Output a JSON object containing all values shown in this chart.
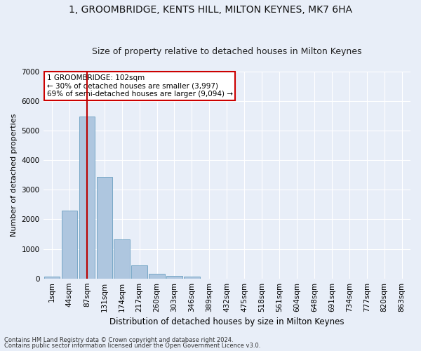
{
  "title": "1, GROOMBRIDGE, KENTS HILL, MILTON KEYNES, MK7 6HA",
  "subtitle": "Size of property relative to detached houses in Milton Keynes",
  "xlabel": "Distribution of detached houses by size in Milton Keynes",
  "ylabel": "Number of detached properties",
  "annotation_line1": "1 GROOMBRIDGE: 102sqm",
  "annotation_line2": "← 30% of detached houses are smaller (3,997)",
  "annotation_line3": "69% of semi-detached houses are larger (9,094) →",
  "footer1": "Contains HM Land Registry data © Crown copyright and database right 2024.",
  "footer2": "Contains public sector information licensed under the Open Government Licence v3.0.",
  "bar_labels": [
    "1sqm",
    "44sqm",
    "87sqm",
    "131sqm",
    "174sqm",
    "217sqm",
    "260sqm",
    "303sqm",
    "346sqm",
    "389sqm",
    "432sqm",
    "475sqm",
    "518sqm",
    "561sqm",
    "604sqm",
    "648sqm",
    "691sqm",
    "734sqm",
    "777sqm",
    "820sqm",
    "863sqm"
  ],
  "bar_values": [
    70,
    2300,
    5480,
    3440,
    1310,
    440,
    170,
    95,
    60,
    0,
    0,
    0,
    0,
    0,
    0,
    0,
    0,
    0,
    0,
    0,
    0
  ],
  "bar_color": "#aec6df",
  "bar_edgecolor": "#6a9fc0",
  "vline_x_index": 2,
  "vline_color": "#bb0000",
  "ylim": [
    0,
    7000
  ],
  "yticks": [
    0,
    1000,
    2000,
    3000,
    4000,
    5000,
    6000,
    7000
  ],
  "bg_color": "#e8eef8",
  "grid_color": "#ffffff",
  "fig_bg_color": "#e8eef8",
  "title_fontsize": 10,
  "subtitle_fontsize": 9,
  "xlabel_fontsize": 8.5,
  "ylabel_fontsize": 8,
  "tick_fontsize": 7.5,
  "annotation_fontsize": 7.5,
  "footer_fontsize": 6,
  "annotation_box_facecolor": "#ffffff",
  "annotation_box_edgecolor": "#cc0000"
}
